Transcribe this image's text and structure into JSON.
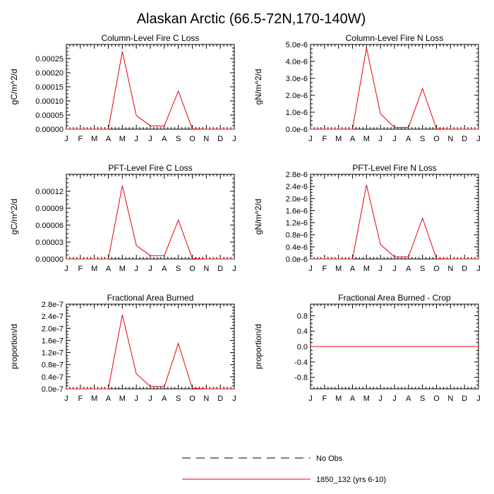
{
  "figure": {
    "title": "Alaskan Arctic (66.5-72N,170-140W)"
  },
  "legend": {
    "entries": [
      {
        "label": "No Obs",
        "style": "dashed",
        "color": "#000000"
      },
      {
        "label": "1850_132 (yrs 6-10)",
        "style": "solid",
        "color": "#e8000b"
      }
    ]
  },
  "chart_data": [
    {
      "type": "line",
      "title": "Column-Level Fire C Loss",
      "ylabel": "gC/m^2/d",
      "categories": [
        "J",
        "F",
        "M",
        "A",
        "M",
        "J",
        "J",
        "A",
        "S",
        "O",
        "N",
        "D",
        "J"
      ],
      "ylim": [
        0,
        0.0003
      ],
      "yticks": [
        0,
        5e-05,
        0.0001,
        0.00015,
        0.0002,
        0.00025
      ],
      "ytick_labels": [
        "0.00000",
        "0.00005",
        "0.00010",
        "0.00015",
        "0.00020",
        "0.00025"
      ],
      "series": [
        {
          "values": [
            0,
            0,
            0,
            0,
            0.000275,
            4.8e-05,
            1.2e-05,
            1.1e-05,
            0.000135,
            1e-06,
            0,
            0,
            0
          ],
          "color": "#e8000b"
        }
      ]
    },
    {
      "type": "line",
      "title": "Column-Level Fire N Loss",
      "ylabel": "gN/m^2/d",
      "categories": [
        "J",
        "F",
        "M",
        "A",
        "M",
        "J",
        "J",
        "A",
        "S",
        "O",
        "N",
        "D",
        "J"
      ],
      "ylim": [
        0,
        5e-06
      ],
      "yticks": [
        0,
        1e-06,
        2e-06,
        3e-06,
        4e-06,
        5e-06
      ],
      "ytick_labels": [
        "0.0e-6",
        "1.0e-6",
        "2.0e-6",
        "3.0e-6",
        "4.0e-6",
        "5.0e-6"
      ],
      "series": [
        {
          "values": [
            0,
            0,
            0,
            0,
            4.8e-06,
            9e-07,
            1e-07,
            1e-07,
            2.4e-06,
            2e-08,
            0,
            0,
            0
          ],
          "color": "#e8000b"
        }
      ]
    },
    {
      "type": "line",
      "title": "PFT-Level Fire C Loss",
      "ylabel": "gC/m^2/d",
      "categories": [
        "J",
        "F",
        "M",
        "A",
        "M",
        "J",
        "J",
        "A",
        "S",
        "O",
        "N",
        "D",
        "J"
      ],
      "ylim": [
        0,
        0.00015
      ],
      "yticks": [
        0,
        3e-05,
        6e-05,
        9e-05,
        0.00012
      ],
      "ytick_labels": [
        "0.00000",
        "0.00003",
        "0.00006",
        "0.00009",
        "0.00012"
      ],
      "series": [
        {
          "values": [
            0,
            0,
            0,
            0,
            0.00013,
            2.4e-05,
            6e-06,
            6e-06,
            6.9e-05,
            1e-06,
            0,
            0,
            0
          ],
          "color": "#e8000b"
        }
      ]
    },
    {
      "type": "line",
      "title": "PFT-Level Fire N Loss",
      "ylabel": "gN/m^2/d",
      "categories": [
        "J",
        "F",
        "M",
        "A",
        "M",
        "J",
        "J",
        "A",
        "S",
        "O",
        "N",
        "D",
        "J"
      ],
      "ylim": [
        0,
        2.8e-06
      ],
      "yticks": [
        0,
        4e-07,
        8e-07,
        1.2e-06,
        1.6e-06,
        2e-06,
        2.4e-06,
        2.8e-06
      ],
      "ytick_labels": [
        "0.0e-6",
        "0.4e-6",
        "0.8e-6",
        "1.2e-6",
        "1.6e-6",
        "2.0e-6",
        "2.4e-6",
        "2.8e-6"
      ],
      "series": [
        {
          "values": [
            0,
            0,
            0,
            0,
            2.45e-06,
            4.8e-07,
            7e-08,
            7e-08,
            1.35e-06,
            1e-08,
            0,
            0,
            0
          ],
          "color": "#e8000b"
        }
      ]
    },
    {
      "type": "line",
      "title": "Fractional Area Burned",
      "ylabel": "proportion/d",
      "categories": [
        "J",
        "F",
        "M",
        "A",
        "M",
        "J",
        "J",
        "A",
        "S",
        "O",
        "N",
        "D",
        "J"
      ],
      "ylim": [
        0,
        2.8e-07
      ],
      "yticks": [
        0,
        4e-08,
        8e-08,
        1.2e-07,
        1.6e-07,
        2e-07,
        2.4e-07,
        2.8e-07
      ],
      "ytick_labels": [
        "0.0e-7",
        "0.4e-7",
        "0.8e-7",
        "1.2e-7",
        "1.6e-7",
        "2.0e-7",
        "2.4e-7",
        "2.8e-7"
      ],
      "series": [
        {
          "values": [
            0,
            0,
            0,
            0,
            2.45e-07,
            5e-08,
            8e-09,
            7e-09,
            1.5e-07,
            2e-09,
            0,
            0,
            0
          ],
          "color": "#e8000b"
        }
      ]
    },
    {
      "type": "line",
      "title": "Fractional Area Burned - Crop",
      "ylabel": "proportion/d",
      "categories": [
        "J",
        "F",
        "M",
        "A",
        "M",
        "J",
        "J",
        "A",
        "S",
        "O",
        "N",
        "D",
        "J"
      ],
      "ylim": [
        -1.1,
        1.1
      ],
      "yticks": [
        -0.8,
        -0.4,
        0,
        0.4,
        0.8
      ],
      "ytick_labels": [
        "-0.8",
        "-0.4",
        "0.0",
        "0.4",
        "0.8"
      ],
      "series": [
        {
          "values": [
            0,
            0,
            0,
            0,
            0,
            0,
            0,
            0,
            0,
            0,
            0,
            0,
            0
          ],
          "color": "#e8000b"
        }
      ]
    }
  ]
}
